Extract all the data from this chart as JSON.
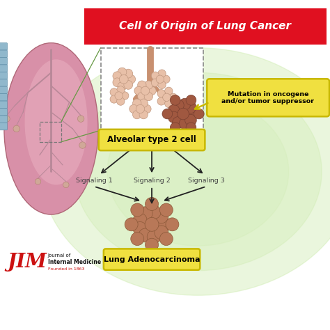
{
  "title": "Cell of Origin of Lung Cancer",
  "title_bg": "#E01020",
  "title_color": "#FFFFFF",
  "bg_color": "#FFFFFF",
  "green_radial_color": "#C5E8A0",
  "label_alveolar": "Alveolar type 2 cell",
  "label_adenocarcinoma": "Lung Adenocarcinoma",
  "label_mutation": "Mutation in oncogene\nand/or tumor suppressor",
  "label_box_color": "#F0E040",
  "label_box_edge": "#C8B800",
  "signaling_labels": [
    "Signaling 1",
    "Signaling 2",
    "Signaling 3"
  ],
  "arrow_color": "#222222",
  "jim_text_1": "Journal of",
  "jim_text_2": "Internal Medicine",
  "jim_text_3": "Founded in 1863",
  "jim_color": "#CC1111",
  "lung_fill": "#D890A8",
  "lung_edge": "#C070888",
  "lung_inner_fill": "#EAB0C0",
  "bronchi_color": "#C0909A",
  "trachea_color": "#90B8CC",
  "trachea_edge": "#6090AA",
  "cell_normal_fill": "#E8C0A8",
  "cell_normal_edge": "#C09880",
  "cell_cancer_fill": "#A05840",
  "cell_cancer_edge": "#784030",
  "adeno_fill": "#B87858",
  "adeno_edge": "#8A5838",
  "dashed_box_color": "#777777",
  "zoom_line_color": "#669944",
  "inset_box_color": "#888888",
  "mutation_arrow_color": "#C8B800"
}
